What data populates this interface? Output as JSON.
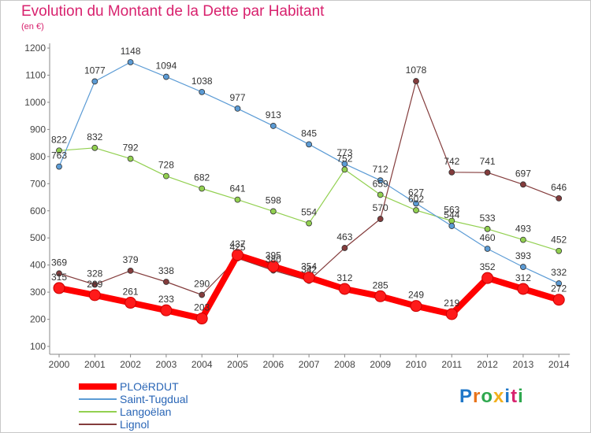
{
  "chart_data": {
    "type": "line",
    "title": "Evolution du Montant de la Dette par Habitant",
    "subtitle": "(en €)",
    "categories": [
      "2000",
      "2001",
      "2002",
      "2003",
      "2004",
      "2005",
      "2006",
      "2007",
      "2008",
      "2009",
      "2010",
      "2011",
      "2012",
      "2013",
      "2014"
    ],
    "ylim": [
      100,
      1200
    ],
    "yticks": [
      100,
      200,
      300,
      400,
      500,
      600,
      700,
      800,
      900,
      1000,
      1100,
      1200
    ],
    "grid": false,
    "legend_position": "bottom-left",
    "series": [
      {
        "name": "PLOëRDUT",
        "color": "#ff0000",
        "values": [
          315,
          289,
          261,
          233,
          203,
          437,
          395,
          354,
          312,
          285,
          249,
          219,
          352,
          312,
          272
        ]
      },
      {
        "name": "Saint-Tugdual",
        "color": "#5b9bd5",
        "values": [
          763,
          1077,
          1148,
          1094,
          1038,
          977,
          913,
          845,
          773,
          712,
          627,
          544,
          460,
          393,
          332
        ]
      },
      {
        "name": "Langoëlan",
        "color": "#92d050",
        "values": [
          822,
          832,
          792,
          728,
          682,
          641,
          598,
          554,
          752,
          659,
          602,
          563,
          533,
          493,
          452
        ]
      },
      {
        "name": "Lignol",
        "color": "#843c3c",
        "values": [
          369,
          328,
          379,
          338,
          290,
          425,
          380,
          342,
          463,
          570,
          1078,
          742,
          741,
          697,
          646
        ]
      }
    ]
  },
  "logo": {
    "letters": [
      "P",
      "r",
      "o",
      "x",
      "i",
      "t",
      "i"
    ],
    "colors": [
      "#1f77c8",
      "#e8731a",
      "#2fa84f",
      "#f2b01e",
      "#1f77c8",
      "#d8226e",
      "#2fa84f"
    ]
  }
}
